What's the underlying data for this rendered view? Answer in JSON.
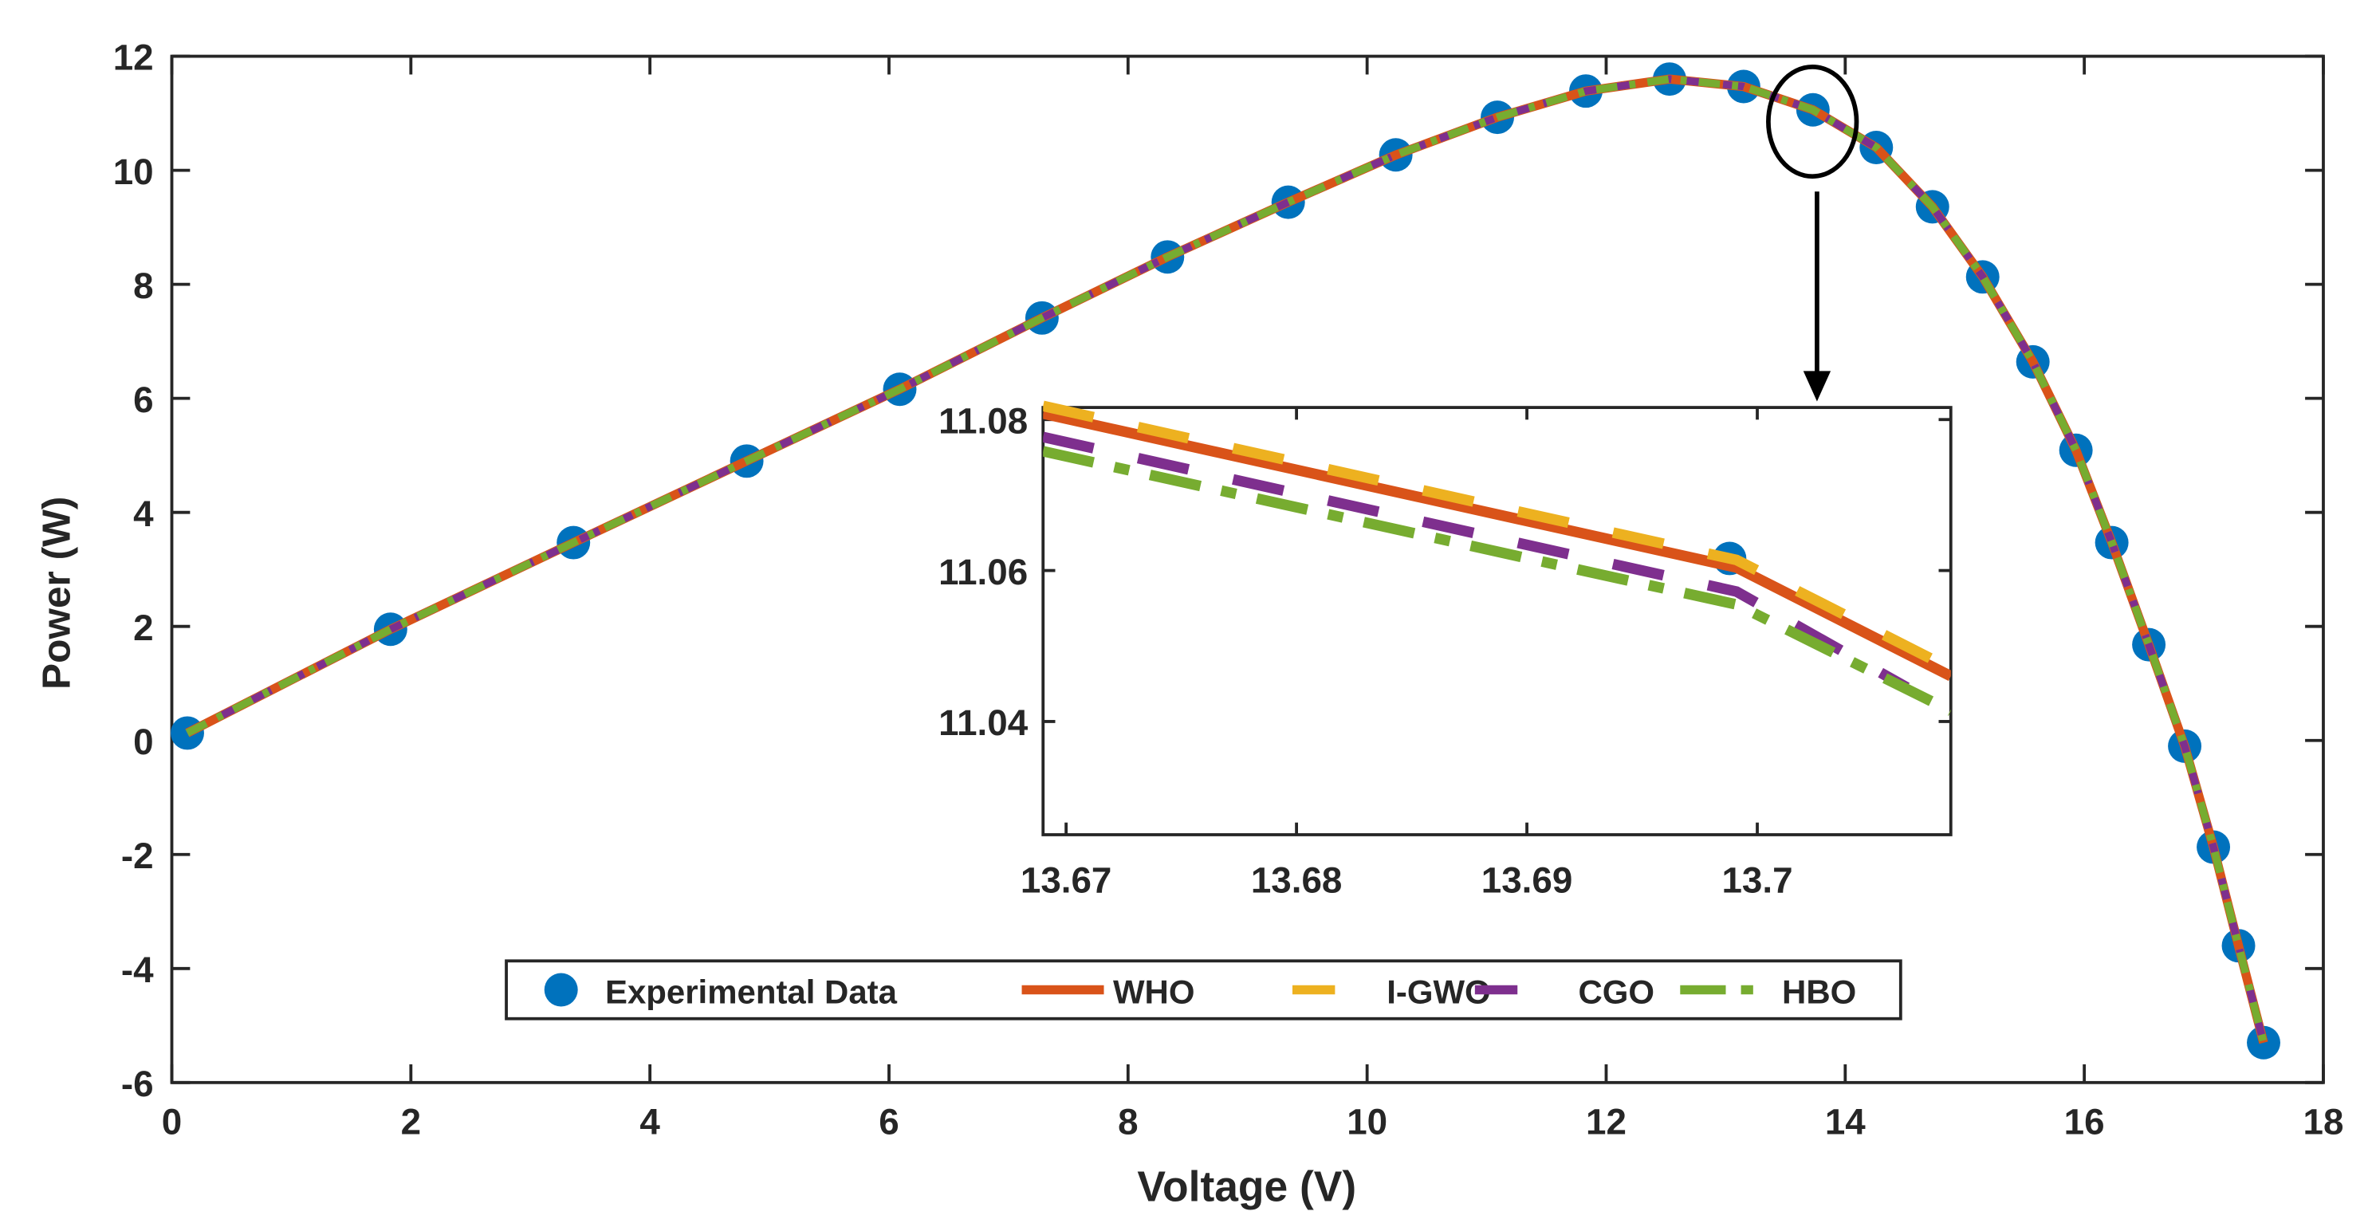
{
  "chart_data": {
    "type": "line",
    "title": "",
    "xlabel": "Voltage (V)",
    "ylabel": "Power (W)",
    "xlim": [
      0,
      18
    ],
    "ylim": [
      -6,
      12
    ],
    "xticks": [
      0,
      2,
      4,
      6,
      8,
      10,
      12,
      14,
      16,
      18
    ],
    "yticks": [
      -6,
      -4,
      -2,
      0,
      2,
      4,
      6,
      8,
      10,
      12
    ],
    "grid": false,
    "legend_position": "bottom-center",
    "experimental": {
      "name": "Experimental Data",
      "color": "#0072BD",
      "x": [
        0.13,
        1.83,
        3.36,
        4.81,
        6.09,
        7.28,
        8.33,
        9.34,
        10.24,
        11.09,
        11.83,
        12.53,
        13.15,
        13.73,
        14.26,
        14.73,
        15.15,
        15.57,
        15.93,
        16.23,
        16.54,
        16.84,
        17.08,
        17.29,
        17.5
      ],
      "y": [
        0.13,
        1.95,
        3.47,
        4.9,
        6.16,
        7.41,
        8.48,
        9.44,
        10.27,
        10.93,
        11.39,
        11.6,
        11.47,
        11.06,
        10.4,
        9.36,
        8.13,
        6.64,
        5.09,
        3.47,
        1.68,
        -0.1,
        -1.87,
        -3.6,
        -5.3
      ]
    },
    "series": [
      {
        "name": "WHO",
        "color": "#D95319",
        "style": "solid"
      },
      {
        "name": "I-GWO",
        "color": "#EDB120",
        "style": "dashed"
      },
      {
        "name": "CGO",
        "color": "#7E2F8E",
        "style": "dashed"
      },
      {
        "name": "HBO",
        "color": "#77AC30",
        "style": "dash-dot"
      }
    ],
    "inset": {
      "xlim": [
        13.669,
        13.7084
      ],
      "ylim": [
        11.025,
        11.0816
      ],
      "xticks": [
        "13.67",
        "13.68",
        "13.69",
        "13.7"
      ],
      "xtick_values": [
        13.67,
        13.68,
        13.69,
        13.7
      ],
      "yticks": [
        "11.04",
        "11.06",
        "11.08"
      ],
      "ytick_values": [
        11.04,
        11.06,
        11.08
      ],
      "experimental_point": {
        "x": 13.6988,
        "y": 11.0616
      },
      "series": [
        {
          "name": "WHO",
          "x": [
            13.669,
            13.6991,
            13.7084
          ],
          "y": [
            11.0808,
            11.0604,
            11.046
          ]
        },
        {
          "name": "I-GWO",
          "x": [
            13.669,
            13.6991,
            13.7084
          ],
          "y": [
            11.0818,
            11.0614,
            11.047
          ]
        },
        {
          "name": "CGO",
          "x": [
            13.669,
            13.6991,
            13.7065
          ],
          "y": [
            11.0777,
            11.0572,
            11.0445
          ]
        },
        {
          "name": "HBO",
          "x": [
            13.669,
            13.6991,
            13.7084
          ],
          "y": [
            11.0758,
            11.0555,
            11.0414
          ]
        }
      ]
    }
  }
}
